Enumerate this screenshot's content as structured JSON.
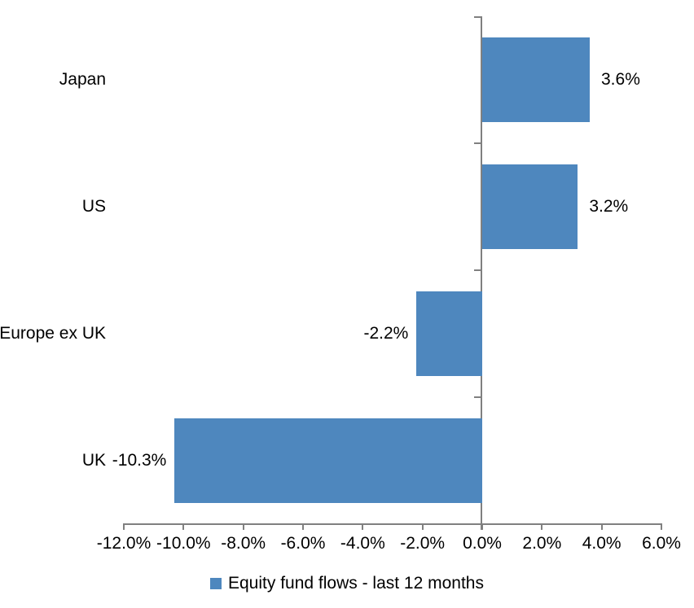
{
  "chart_data": {
    "type": "bar",
    "orientation": "horizontal",
    "title": "",
    "categories": [
      "Japan",
      "US",
      "Europe ex UK",
      "UK"
    ],
    "series": [
      {
        "name": "Equity fund flows - last 12 months",
        "values": [
          3.6,
          3.2,
          -2.2,
          -10.3
        ],
        "value_labels": [
          "3.6%",
          "3.2%",
          "-2.2%",
          "-10.3%"
        ]
      }
    ],
    "xlabel": "",
    "ylabel": "",
    "xlim": [
      -12.0,
      6.0
    ],
    "x_tick_values": [
      -12,
      -10,
      -8,
      -6,
      -4,
      -2,
      0,
      2,
      4,
      6
    ],
    "x_tick_labels": [
      "-12.0%",
      "-10.0%",
      "-8.0%",
      "-6.0%",
      "-4.0%",
      "-2.0%",
      "0.0%",
      "2.0%",
      "4.0%",
      "6.0%"
    ],
    "grid": false,
    "legend_position": "bottom-center",
    "legend_label": "Equity fund flows - last 12 months",
    "colors": {
      "bar": "#4E87BE",
      "axis": "#808080",
      "text": "#000000",
      "background": "#FFFFFF"
    }
  }
}
